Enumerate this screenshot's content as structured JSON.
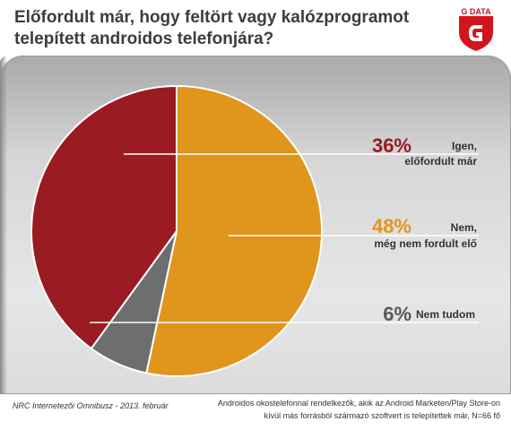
{
  "title": {
    "line1": "Előfordult már, hogy feltört vagy kalózprogramot",
    "line2": "telepített androidos telefonjára?"
  },
  "logo": {
    "text": "G DATA",
    "icon": "g-data-shield-logo"
  },
  "colors": {
    "igen": "#9a1b22",
    "nem": "#e0951c",
    "nem_tudom": "#6d6e70",
    "nem_tudom_pct": "#58595b",
    "panel": "#dcdcdc"
  },
  "chart_data": {
    "type": "pie",
    "start_angle": "12 o'clock",
    "direction": "clockwise",
    "slices": [
      {
        "label": "Nem, még nem fordult elő",
        "value": 48,
        "display": "48%",
        "line1": "Nem,",
        "line2": "még nem fordult elő"
      },
      {
        "label": "Nem tudom",
        "value": 6,
        "display": "6%",
        "line1": "Nem tudom",
        "line2": ""
      },
      {
        "label": "Igen, előfordult már",
        "value": 36,
        "display": "36%",
        "line1": "Igen,",
        "line2": "előfordult már"
      }
    ]
  },
  "footer": {
    "source": "NRC Internetezői Omnibusz - 2013. február",
    "note_line1": "Androidos okostelefonnal rendelkezők, akik az Android Marketen/Play Store-on",
    "note_line2": "kívül más forrásból származó szoftvert is telepítettek már, N=66 fő"
  }
}
